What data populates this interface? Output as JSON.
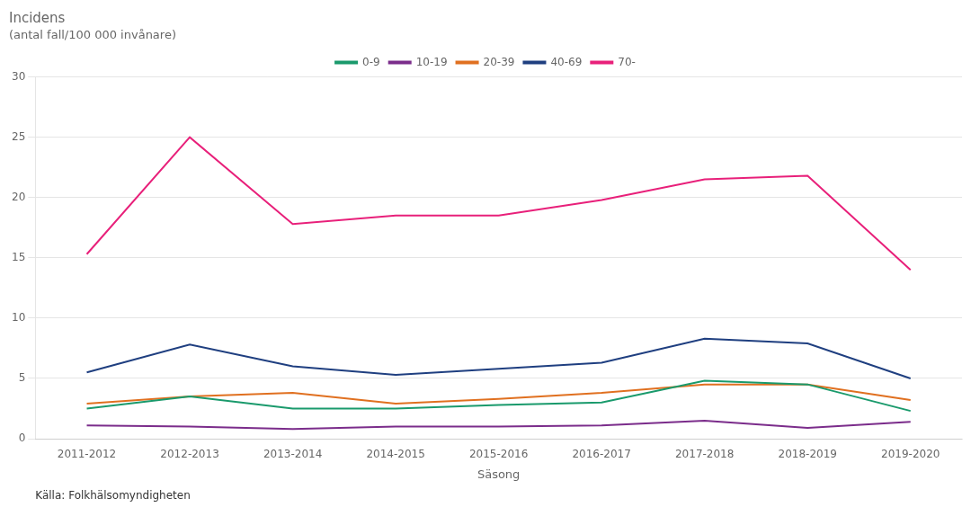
{
  "chart_data": {
    "type": "line",
    "title": "Incidens",
    "subtitle": "(antal fall/100 000 invånare)",
    "xlabel": "Säsong",
    "annotations": [
      "Källa: Folkhälsomyndigheten"
    ],
    "categories": [
      "2011-2012",
      "2012-2013",
      "2013-2014",
      "2014-2015",
      "2015-2016",
      "2016-2017",
      "2017-2018",
      "2018-2019",
      "2019-2020"
    ],
    "series": [
      {
        "name": "0-9",
        "color": "#1a9a6c",
        "values": [
          2.5,
          3.5,
          2.5,
          2.5,
          2.8,
          3.0,
          4.8,
          4.5,
          2.3
        ]
      },
      {
        "name": "10-19",
        "color": "#7b2d8b",
        "values": [
          1.1,
          1.0,
          0.8,
          1.0,
          1.0,
          1.1,
          1.5,
          0.9,
          1.4
        ]
      },
      {
        "name": "20-39",
        "color": "#e07020",
        "values": [
          2.9,
          3.5,
          3.8,
          2.9,
          3.3,
          3.8,
          4.5,
          4.5,
          3.2
        ]
      },
      {
        "name": "40-69",
        "color": "#1f3f80",
        "values": [
          5.5,
          7.8,
          6.0,
          5.3,
          5.8,
          6.3,
          8.3,
          7.9,
          5.0
        ]
      },
      {
        "name": "70-",
        "color": "#e8207a",
        "values": [
          15.3,
          25.0,
          17.8,
          18.5,
          18.5,
          19.8,
          21.5,
          21.8,
          14.0
        ]
      }
    ],
    "ylim": [
      0,
      30
    ],
    "yticks": [
      0,
      5,
      10,
      15,
      20,
      25,
      30
    ],
    "grid": true,
    "legend": "top"
  }
}
